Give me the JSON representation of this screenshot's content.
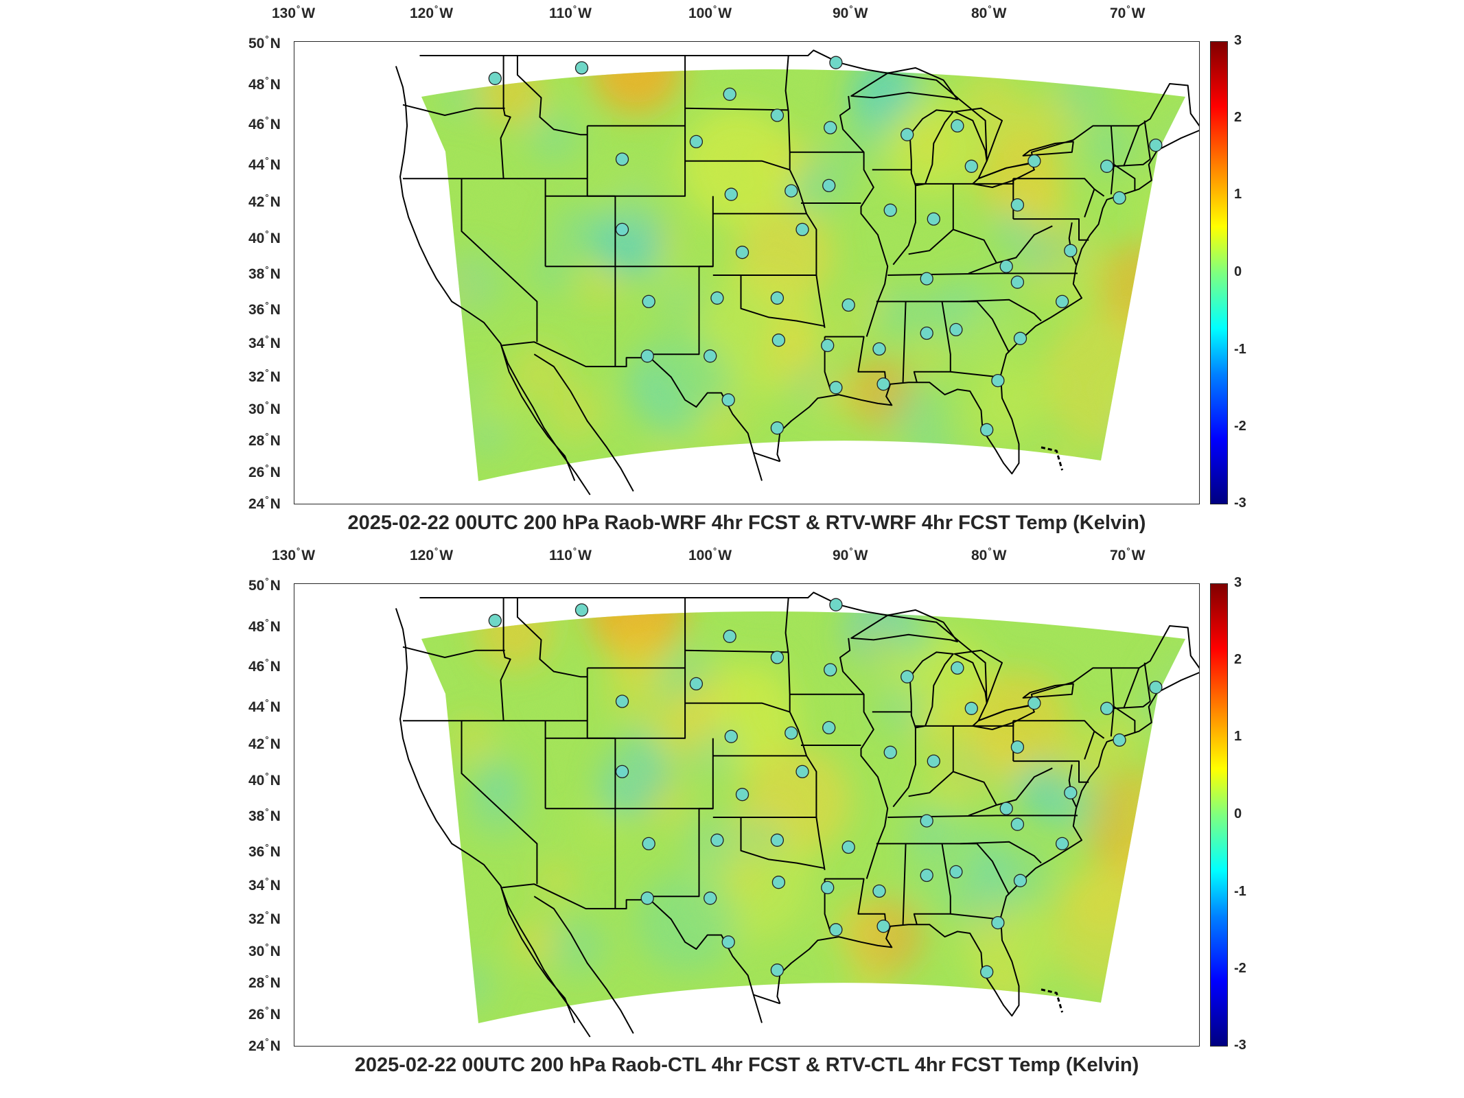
{
  "panels": [
    {
      "title": "2025-02-22 00UTC 200 hPa Raob-WRF 4hr FCST & RTV-WRF 4hr FCST Temp (Kelvin)",
      "lon_labels": [
        "130",
        "120",
        "110",
        "100",
        "90",
        "80",
        "70"
      ],
      "lon_suffix": "W",
      "lat_labels": [
        "50",
        "48",
        "46",
        "44",
        "42",
        "40",
        "38",
        "36",
        "34",
        "32",
        "30",
        "28",
        "26",
        "24"
      ],
      "lat_suffix": "N",
      "colorbar_ticks": [
        "3",
        "2",
        "1",
        "0",
        "-1",
        "-2",
        "-3"
      ]
    },
    {
      "title": "2025-02-22 00UTC 200 hPa Raob-CTL 4hr FCST & RTV-CTL 4hr FCST Temp (Kelvin)",
      "lon_labels": [
        "130",
        "120",
        "110",
        "100",
        "90",
        "80",
        "70"
      ],
      "lon_suffix": "W",
      "lat_labels": [
        "50",
        "48",
        "46",
        "44",
        "42",
        "40",
        "38",
        "36",
        "34",
        "32",
        "30",
        "28",
        "26",
        "24"
      ],
      "lat_suffix": "N",
      "colorbar_ticks": [
        "3",
        "2",
        "1",
        "0",
        "-1",
        "-2",
        "-3"
      ]
    }
  ],
  "colors": {
    "field_base": "#9be35a",
    "marker_fill": "#6fd7c7",
    "outline": "#000000"
  },
  "colorbar_range": [
    -3,
    3
  ],
  "raob_stations": [
    [
      -117.6,
      47.7
    ],
    [
      -111.4,
      48.3
    ],
    [
      -100.8,
      46.8
    ],
    [
      -97.4,
      45.6
    ],
    [
      -93.6,
      44.9
    ],
    [
      -93.2,
      48.6
    ],
    [
      -108.5,
      43.1
    ],
    [
      -103.2,
      44.1
    ],
    [
      -100.7,
      41.1
    ],
    [
      -96.4,
      41.3
    ],
    [
      -93.7,
      41.6
    ],
    [
      -89.3,
      40.2
    ],
    [
      -88.1,
      44.5
    ],
    [
      -84.5,
      45.0
    ],
    [
      -83.5,
      42.7
    ],
    [
      -79.0,
      43.0
    ],
    [
      -73.8,
      42.7
    ],
    [
      -70.3,
      43.9
    ],
    [
      -80.2,
      40.5
    ],
    [
      -86.2,
      39.7
    ],
    [
      -95.6,
      39.1
    ],
    [
      -99.9,
      37.8
    ],
    [
      -108.5,
      39.1
    ],
    [
      -106.6,
      35.0
    ],
    [
      -101.7,
      35.2
    ],
    [
      -97.4,
      35.2
    ],
    [
      -92.3,
      34.8
    ],
    [
      -86.7,
      36.3
    ],
    [
      -81.0,
      37.0
    ],
    [
      -80.2,
      36.1
    ],
    [
      -77.0,
      35.0
    ],
    [
      -84.6,
      33.4
    ],
    [
      -86.7,
      33.2
    ],
    [
      -90.1,
      32.3
    ],
    [
      -93.8,
      32.5
    ],
    [
      -97.3,
      32.8
    ],
    [
      -102.2,
      31.9
    ],
    [
      -106.7,
      31.9
    ],
    [
      -100.9,
      29.4
    ],
    [
      -97.4,
      27.8
    ],
    [
      -93.2,
      30.1
    ],
    [
      -89.8,
      30.3
    ],
    [
      -81.6,
      30.5
    ],
    [
      -82.4,
      27.7
    ],
    [
      -80.0,
      32.9
    ],
    [
      -76.4,
      37.9
    ],
    [
      -72.9,
      40.9
    ]
  ]
}
